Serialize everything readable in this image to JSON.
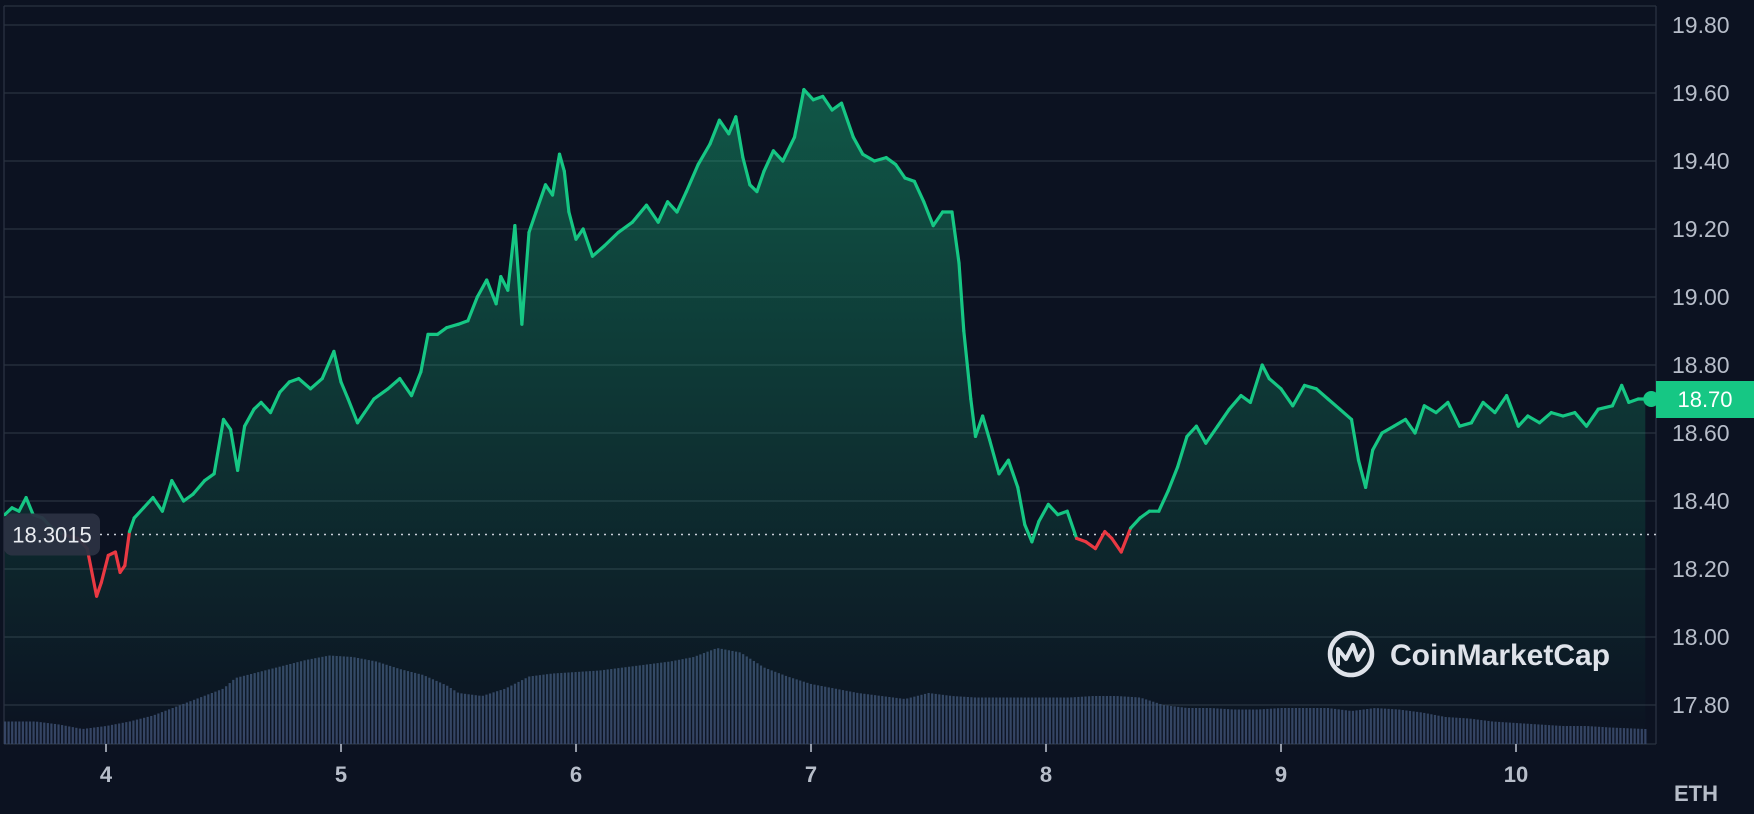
{
  "chart_data": {
    "type": "area",
    "y_unit": "ETH",
    "ylim": [
      17.65,
      19.88
    ],
    "xlim": [
      3.55,
      10.6
    ],
    "y_ticks": [
      "19.80",
      "19.60",
      "19.40",
      "19.20",
      "19.00",
      "18.80",
      "18.60",
      "18.40",
      "18.20",
      "18.00",
      "17.80"
    ],
    "x_ticks": [
      "4",
      "5",
      "6",
      "7",
      "8",
      "9",
      "10"
    ],
    "reference_line": {
      "value": 18.3015,
      "label": "18.3015"
    },
    "current_price": {
      "value": 18.7,
      "label": "18.70"
    },
    "grid": true,
    "series": [
      {
        "values": [
          [
            3.57,
            18.36
          ],
          [
            3.6,
            18.38
          ],
          [
            3.63,
            18.37
          ],
          [
            3.66,
            18.41
          ],
          [
            3.69,
            18.36
          ],
          [
            3.73,
            18.35
          ],
          [
            3.77,
            18.32
          ],
          [
            3.82,
            18.3
          ],
          [
            3.88,
            18.29
          ],
          [
            3.92,
            18.26
          ],
          [
            3.96,
            18.12
          ],
          [
            3.98,
            18.16
          ],
          [
            4.01,
            18.24
          ],
          [
            4.04,
            18.25
          ],
          [
            4.06,
            18.19
          ],
          [
            4.08,
            18.21
          ],
          [
            4.1,
            18.31
          ],
          [
            4.12,
            18.35
          ],
          [
            4.16,
            18.38
          ],
          [
            4.2,
            18.41
          ],
          [
            4.24,
            18.37
          ],
          [
            4.28,
            18.46
          ],
          [
            4.33,
            18.4
          ],
          [
            4.37,
            18.42
          ],
          [
            4.42,
            18.46
          ],
          [
            4.46,
            18.48
          ],
          [
            4.5,
            18.64
          ],
          [
            4.53,
            18.61
          ],
          [
            4.56,
            18.49
          ],
          [
            4.59,
            18.62
          ],
          [
            4.63,
            18.67
          ],
          [
            4.66,
            18.69
          ],
          [
            4.7,
            18.66
          ],
          [
            4.74,
            18.72
          ],
          [
            4.78,
            18.75
          ],
          [
            4.82,
            18.76
          ],
          [
            4.87,
            18.73
          ],
          [
            4.92,
            18.76
          ],
          [
            4.97,
            18.84
          ],
          [
            5.0,
            18.75
          ],
          [
            5.03,
            18.7
          ],
          [
            5.07,
            18.63
          ],
          [
            5.1,
            18.66
          ],
          [
            5.14,
            18.7
          ],
          [
            5.2,
            18.73
          ],
          [
            5.25,
            18.76
          ],
          [
            5.3,
            18.71
          ],
          [
            5.34,
            18.78
          ],
          [
            5.37,
            18.89
          ],
          [
            5.41,
            18.89
          ],
          [
            5.45,
            18.91
          ],
          [
            5.5,
            18.92
          ],
          [
            5.54,
            18.93
          ],
          [
            5.58,
            19.0
          ],
          [
            5.62,
            19.05
          ],
          [
            5.66,
            18.98
          ],
          [
            5.68,
            19.06
          ],
          [
            5.71,
            19.02
          ],
          [
            5.74,
            19.21
          ],
          [
            5.77,
            18.92
          ],
          [
            5.8,
            19.19
          ],
          [
            5.83,
            19.25
          ],
          [
            5.87,
            19.33
          ],
          [
            5.9,
            19.3
          ],
          [
            5.93,
            19.42
          ],
          [
            5.95,
            19.37
          ],
          [
            5.97,
            19.25
          ],
          [
            6.0,
            19.17
          ],
          [
            6.03,
            19.2
          ],
          [
            6.07,
            19.12
          ],
          [
            6.12,
            19.15
          ],
          [
            6.18,
            19.19
          ],
          [
            6.24,
            19.22
          ],
          [
            6.3,
            19.27
          ],
          [
            6.35,
            19.22
          ],
          [
            6.39,
            19.28
          ],
          [
            6.43,
            19.25
          ],
          [
            6.47,
            19.31
          ],
          [
            6.52,
            19.39
          ],
          [
            6.57,
            19.45
          ],
          [
            6.61,
            19.52
          ],
          [
            6.65,
            19.48
          ],
          [
            6.68,
            19.53
          ],
          [
            6.71,
            19.41
          ],
          [
            6.74,
            19.33
          ],
          [
            6.77,
            19.31
          ],
          [
            6.8,
            19.37
          ],
          [
            6.84,
            19.43
          ],
          [
            6.88,
            19.4
          ],
          [
            6.93,
            19.47
          ],
          [
            6.97,
            19.61
          ],
          [
            7.01,
            19.58
          ],
          [
            7.05,
            19.59
          ],
          [
            7.09,
            19.55
          ],
          [
            7.13,
            19.57
          ],
          [
            7.18,
            19.47
          ],
          [
            7.22,
            19.42
          ],
          [
            7.27,
            19.4
          ],
          [
            7.32,
            19.41
          ],
          [
            7.36,
            19.39
          ],
          [
            7.4,
            19.35
          ],
          [
            7.44,
            19.34
          ],
          [
            7.48,
            19.28
          ],
          [
            7.52,
            19.21
          ],
          [
            7.56,
            19.25
          ],
          [
            7.6,
            19.25
          ],
          [
            7.63,
            19.1
          ],
          [
            7.65,
            18.9
          ],
          [
            7.68,
            18.7
          ],
          [
            7.7,
            18.59
          ],
          [
            7.73,
            18.65
          ],
          [
            7.76,
            18.58
          ],
          [
            7.8,
            18.48
          ],
          [
            7.84,
            18.52
          ],
          [
            7.88,
            18.44
          ],
          [
            7.91,
            18.33
          ],
          [
            7.94,
            18.28
          ],
          [
            7.97,
            18.34
          ],
          [
            8.01,
            18.39
          ],
          [
            8.05,
            18.36
          ],
          [
            8.09,
            18.37
          ],
          [
            8.13,
            18.29
          ],
          [
            8.17,
            18.28
          ],
          [
            8.21,
            18.26
          ],
          [
            8.25,
            18.31
          ],
          [
            8.28,
            18.29
          ],
          [
            8.32,
            18.25
          ],
          [
            8.36,
            18.32
          ],
          [
            8.4,
            18.35
          ],
          [
            8.44,
            18.37
          ],
          [
            8.48,
            18.37
          ],
          [
            8.52,
            18.43
          ],
          [
            8.56,
            18.5
          ],
          [
            8.6,
            18.59
          ],
          [
            8.64,
            18.62
          ],
          [
            8.68,
            18.57
          ],
          [
            8.73,
            18.62
          ],
          [
            8.78,
            18.67
          ],
          [
            8.83,
            18.71
          ],
          [
            8.87,
            18.69
          ],
          [
            8.92,
            18.8
          ],
          [
            8.95,
            18.76
          ],
          [
            9.0,
            18.73
          ],
          [
            9.05,
            18.68
          ],
          [
            9.1,
            18.74
          ],
          [
            9.15,
            18.73
          ],
          [
            9.2,
            18.7
          ],
          [
            9.25,
            18.67
          ],
          [
            9.3,
            18.64
          ],
          [
            9.33,
            18.52
          ],
          [
            9.36,
            18.44
          ],
          [
            9.39,
            18.55
          ],
          [
            9.43,
            18.6
          ],
          [
            9.48,
            18.62
          ],
          [
            9.53,
            18.64
          ],
          [
            9.57,
            18.6
          ],
          [
            9.61,
            18.68
          ],
          [
            9.66,
            18.66
          ],
          [
            9.71,
            18.69
          ],
          [
            9.76,
            18.62
          ],
          [
            9.81,
            18.63
          ],
          [
            9.86,
            18.69
          ],
          [
            9.91,
            18.66
          ],
          [
            9.96,
            18.71
          ],
          [
            10.01,
            18.62
          ],
          [
            10.05,
            18.65
          ],
          [
            10.1,
            18.63
          ],
          [
            10.15,
            18.66
          ],
          [
            10.2,
            18.65
          ],
          [
            10.25,
            18.66
          ],
          [
            10.3,
            18.62
          ],
          [
            10.35,
            18.67
          ],
          [
            10.41,
            18.68
          ],
          [
            10.45,
            18.74
          ],
          [
            10.48,
            18.69
          ],
          [
            10.52,
            18.7
          ],
          [
            10.55,
            18.7
          ]
        ]
      }
    ],
    "volume_profile": [
      [
        3.57,
        0.15
      ],
      [
        3.7,
        0.15
      ],
      [
        3.8,
        0.13
      ],
      [
        3.9,
        0.1
      ],
      [
        4.0,
        0.12
      ],
      [
        4.1,
        0.15
      ],
      [
        4.2,
        0.19
      ],
      [
        4.3,
        0.25
      ],
      [
        4.4,
        0.31
      ],
      [
        4.5,
        0.37
      ],
      [
        4.55,
        0.44
      ],
      [
        4.65,
        0.48
      ],
      [
        4.75,
        0.52
      ],
      [
        4.85,
        0.56
      ],
      [
        4.95,
        0.59
      ],
      [
        5.05,
        0.58
      ],
      [
        5.15,
        0.55
      ],
      [
        5.25,
        0.5
      ],
      [
        5.35,
        0.46
      ],
      [
        5.45,
        0.39
      ],
      [
        5.5,
        0.34
      ],
      [
        5.6,
        0.32
      ],
      [
        5.7,
        0.37
      ],
      [
        5.8,
        0.45
      ],
      [
        5.9,
        0.47
      ],
      [
        6.0,
        0.48
      ],
      [
        6.1,
        0.49
      ],
      [
        6.2,
        0.51
      ],
      [
        6.3,
        0.53
      ],
      [
        6.4,
        0.55
      ],
      [
        6.5,
        0.58
      ],
      [
        6.6,
        0.64
      ],
      [
        6.7,
        0.61
      ],
      [
        6.8,
        0.51
      ],
      [
        6.9,
        0.45
      ],
      [
        7.0,
        0.4
      ],
      [
        7.1,
        0.37
      ],
      [
        7.2,
        0.34
      ],
      [
        7.3,
        0.32
      ],
      [
        7.4,
        0.3
      ],
      [
        7.5,
        0.34
      ],
      [
        7.6,
        0.32
      ],
      [
        7.7,
        0.31
      ],
      [
        7.8,
        0.31
      ],
      [
        7.9,
        0.31
      ],
      [
        8.0,
        0.31
      ],
      [
        8.1,
        0.31
      ],
      [
        8.2,
        0.32
      ],
      [
        8.3,
        0.32
      ],
      [
        8.4,
        0.31
      ],
      [
        8.5,
        0.26
      ],
      [
        8.6,
        0.24
      ],
      [
        8.7,
        0.24
      ],
      [
        8.8,
        0.23
      ],
      [
        8.9,
        0.23
      ],
      [
        9.0,
        0.24
      ],
      [
        9.1,
        0.24
      ],
      [
        9.2,
        0.24
      ],
      [
        9.3,
        0.22
      ],
      [
        9.4,
        0.24
      ],
      [
        9.5,
        0.23
      ],
      [
        9.6,
        0.21
      ],
      [
        9.7,
        0.18
      ],
      [
        9.8,
        0.17
      ],
      [
        9.9,
        0.15
      ],
      [
        10.0,
        0.14
      ],
      [
        10.1,
        0.13
      ],
      [
        10.2,
        0.12
      ],
      [
        10.3,
        0.12
      ],
      [
        10.4,
        0.11
      ],
      [
        10.55,
        0.1
      ]
    ],
    "colors": {
      "up": "#16c784",
      "down": "#ea3943",
      "area_top": "#16c784",
      "volume": "#3a4a6b",
      "grid": "#2a3241",
      "background": "#0c1221"
    }
  },
  "watermark": {
    "brand": "CoinMarketCap"
  }
}
